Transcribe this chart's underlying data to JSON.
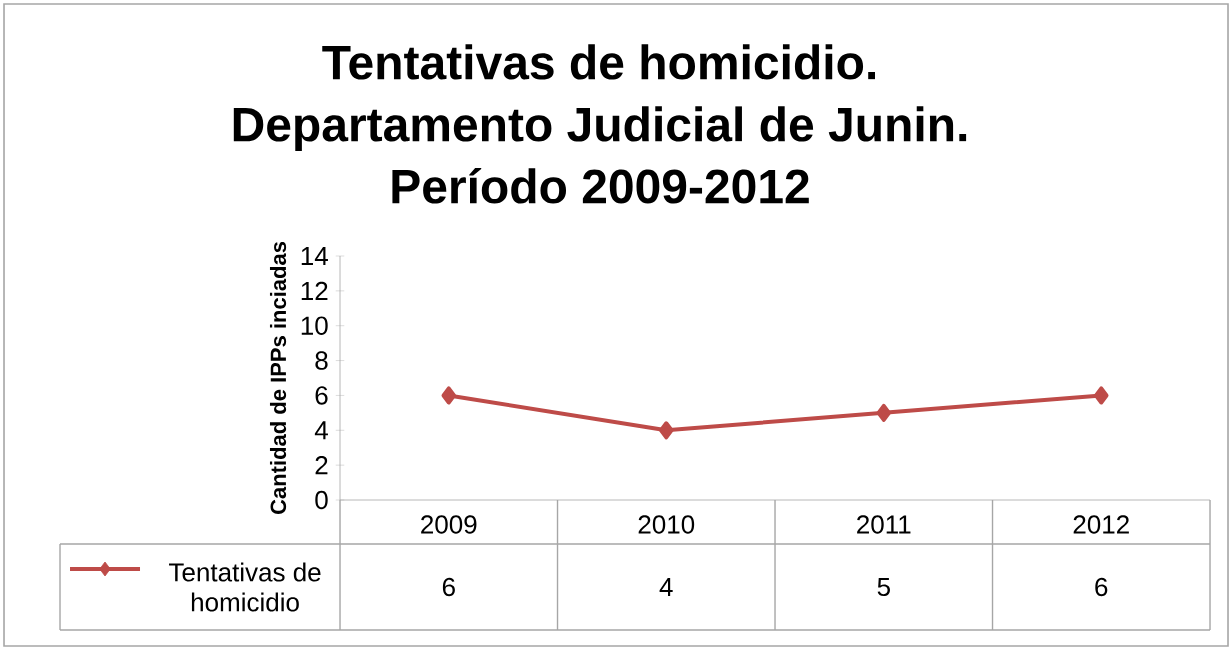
{
  "chart_data": {
    "type": "line",
    "title": "Tentativas de homicidio. Departamento Judicial de Junin. Período  2009-2012",
    "ylabel": "Cantidad de IPPs inciadas",
    "categories": [
      "2009",
      "2010",
      "2011",
      "2012"
    ],
    "series": [
      {
        "name": "Tentativas de homicidio",
        "color": "#be4b48",
        "values": [
          6,
          4,
          5,
          6
        ]
      }
    ],
    "ylim": [
      0,
      14
    ],
    "yticks": [
      0,
      2,
      4,
      6,
      8,
      10,
      12,
      14
    ],
    "marker": "diamond",
    "data_labels": true,
    "legend": "bottom left"
  }
}
